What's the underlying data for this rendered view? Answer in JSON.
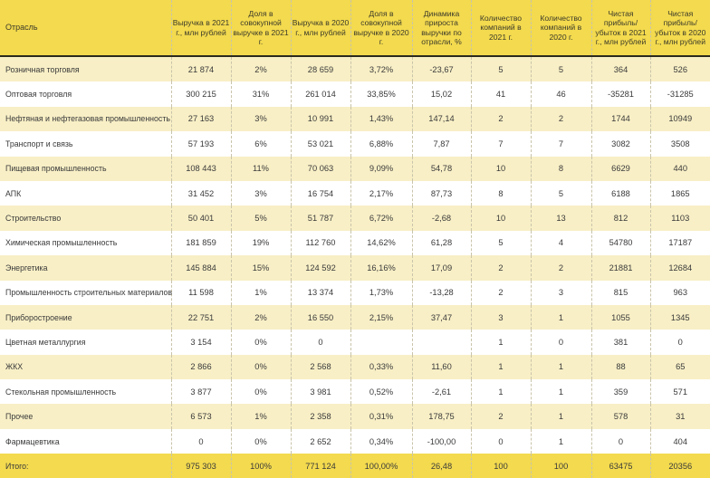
{
  "table": {
    "headers": [
      "Отрасль",
      "Выручка в 2021 г., млн рублей",
      "Доля в совокупной выручке в 2021 г.",
      "Выручка в 2020 г., млн рублей",
      "Доля в совокупной выручке в 2020 г.",
      "Динамика прироста выручки по отрасли, %",
      "Количество компаний в 2021 г.",
      "Количество компаний в 2020 г.",
      "Чистая прибыль/ убыток в 2021 г., млн рублей",
      "Чистая прибыль/ убыток в 2020 г., млн рублей"
    ],
    "rows": [
      [
        "Розничная торговля",
        "21 874",
        "2%",
        "28 659",
        "3,72%",
        "-23,67",
        "5",
        "5",
        "364",
        "526"
      ],
      [
        "Оптовая торговля",
        "300 215",
        "31%",
        "261 014",
        "33,85%",
        "15,02",
        "41",
        "46",
        "-35281",
        "-31285"
      ],
      [
        "Нефтяная и нефтегазовая промышленность",
        "27 163",
        "3%",
        "10 991",
        "1,43%",
        "147,14",
        "2",
        "2",
        "1744",
        "10949"
      ],
      [
        "Транспорт и связь",
        "57 193",
        "6%",
        "53 021",
        "6,88%",
        "7,87",
        "7",
        "7",
        "3082",
        "3508"
      ],
      [
        "Пищевая промышленность",
        "108 443",
        "11%",
        "70 063",
        "9,09%",
        "54,78",
        "10",
        "8",
        "6629",
        "440"
      ],
      [
        "АПК",
        "31 452",
        "3%",
        "16 754",
        "2,17%",
        "87,73",
        "8",
        "5",
        "6188",
        "1865"
      ],
      [
        "Строительство",
        "50 401",
        "5%",
        "51 787",
        "6,72%",
        "-2,68",
        "10",
        "13",
        "812",
        "1103"
      ],
      [
        "Химическая промышленность",
        "181 859",
        "19%",
        "112 760",
        "14,62%",
        "61,28",
        "5",
        "4",
        "54780",
        "17187"
      ],
      [
        "Энергетика",
        "145 884",
        "15%",
        "124 592",
        "16,16%",
        "17,09",
        "2",
        "2",
        "21881",
        "12684"
      ],
      [
        "Промышленность строительных материалов",
        "11 598",
        "1%",
        "13 374",
        "1,73%",
        "-13,28",
        "2",
        "3",
        "815",
        "963"
      ],
      [
        "Приборостроение",
        "22 751",
        "2%",
        "16 550",
        "2,15%",
        "37,47",
        "3",
        "1",
        "1055",
        "1345"
      ],
      [
        "Цветная металлургия",
        "3 154",
        "0%",
        "0",
        "",
        "",
        "1",
        "0",
        "381",
        "0"
      ],
      [
        "ЖКХ",
        "2 866",
        "0%",
        "2 568",
        "0,33%",
        "11,60",
        "1",
        "1",
        "88",
        "65"
      ],
      [
        "Стекольная промышленность",
        "3 877",
        "0%",
        "3 981",
        "0,52%",
        "-2,61",
        "1",
        "1",
        "359",
        "571"
      ],
      [
        "Прочее",
        "6 573",
        "1%",
        "2 358",
        "0,31%",
        "178,75",
        "2",
        "1",
        "578",
        "31"
      ],
      [
        "Фармацевтика",
        "0",
        "0%",
        "2 652",
        "0,34%",
        "-100,00",
        "0",
        "1",
        "0",
        "404"
      ]
    ],
    "total": [
      "Итого:",
      "975 303",
      "100%",
      "771 124",
      "100,00%",
      "26,48",
      "100",
      "100",
      "63475",
      "20356"
    ]
  },
  "colors": {
    "header_bg": "#f3da4e",
    "row_alt_bg": "#f8efc6",
    "row_bg": "#ffffff",
    "total_bg": "#f3da4e",
    "header_rule": "#2c2a1e"
  }
}
